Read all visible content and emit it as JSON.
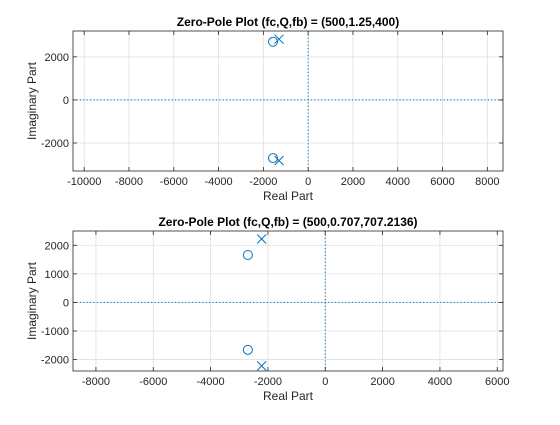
{
  "chart_data": [
    {
      "type": "scatter",
      "title": "Zero-Pole Plot (fc,Q,fb) = (500,1.25,400)",
      "xlabel": "Real Part",
      "ylabel": "Imaginary Part",
      "xlim": [
        -10500,
        8700
      ],
      "ylim": [
        -3300,
        3200
      ],
      "xticks": [
        -10000,
        -8000,
        -6000,
        -4000,
        -2000,
        0,
        2000,
        4000,
        6000,
        8000
      ],
      "yticks": [
        -2000,
        0,
        2000
      ],
      "grid": true,
      "series": [
        {
          "marker": "o",
          "points": [
            {
              "x": -1570,
              "y": 2700
            },
            {
              "x": -1570,
              "y": -2700
            }
          ]
        },
        {
          "marker": "x",
          "points": [
            {
              "x": -1300,
              "y": 2820
            },
            {
              "x": -1300,
              "y": -2820
            }
          ]
        }
      ],
      "reference_lines": {
        "x": 0,
        "y": 0
      }
    },
    {
      "type": "scatter",
      "title": "Zero-Pole Plot (fc,Q,fb) = (500,0.707,707.2136)",
      "xlabel": "Real Part",
      "ylabel": "Imaginary Part",
      "xlim": [
        -8800,
        6200
      ],
      "ylim": [
        -2400,
        2500
      ],
      "xticks": [
        -8000,
        -6000,
        -4000,
        -2000,
        0,
        2000,
        4000,
        6000
      ],
      "yticks": [
        -2000,
        -1000,
        0,
        1000,
        2000
      ],
      "grid": true,
      "series": [
        {
          "marker": "o",
          "points": [
            {
              "x": -2700,
              "y": 1660
            },
            {
              "x": -2700,
              "y": -1660
            }
          ]
        },
        {
          "marker": "x",
          "points": [
            {
              "x": -2220,
              "y": 2220
            },
            {
              "x": -2220,
              "y": -2220
            }
          ]
        }
      ],
      "reference_lines": {
        "x": 0,
        "y": 0
      }
    }
  ],
  "colors": {
    "marker": "#0072BD",
    "grid": "#dfdfdf",
    "axis": "#262626",
    "text": "#262626"
  }
}
